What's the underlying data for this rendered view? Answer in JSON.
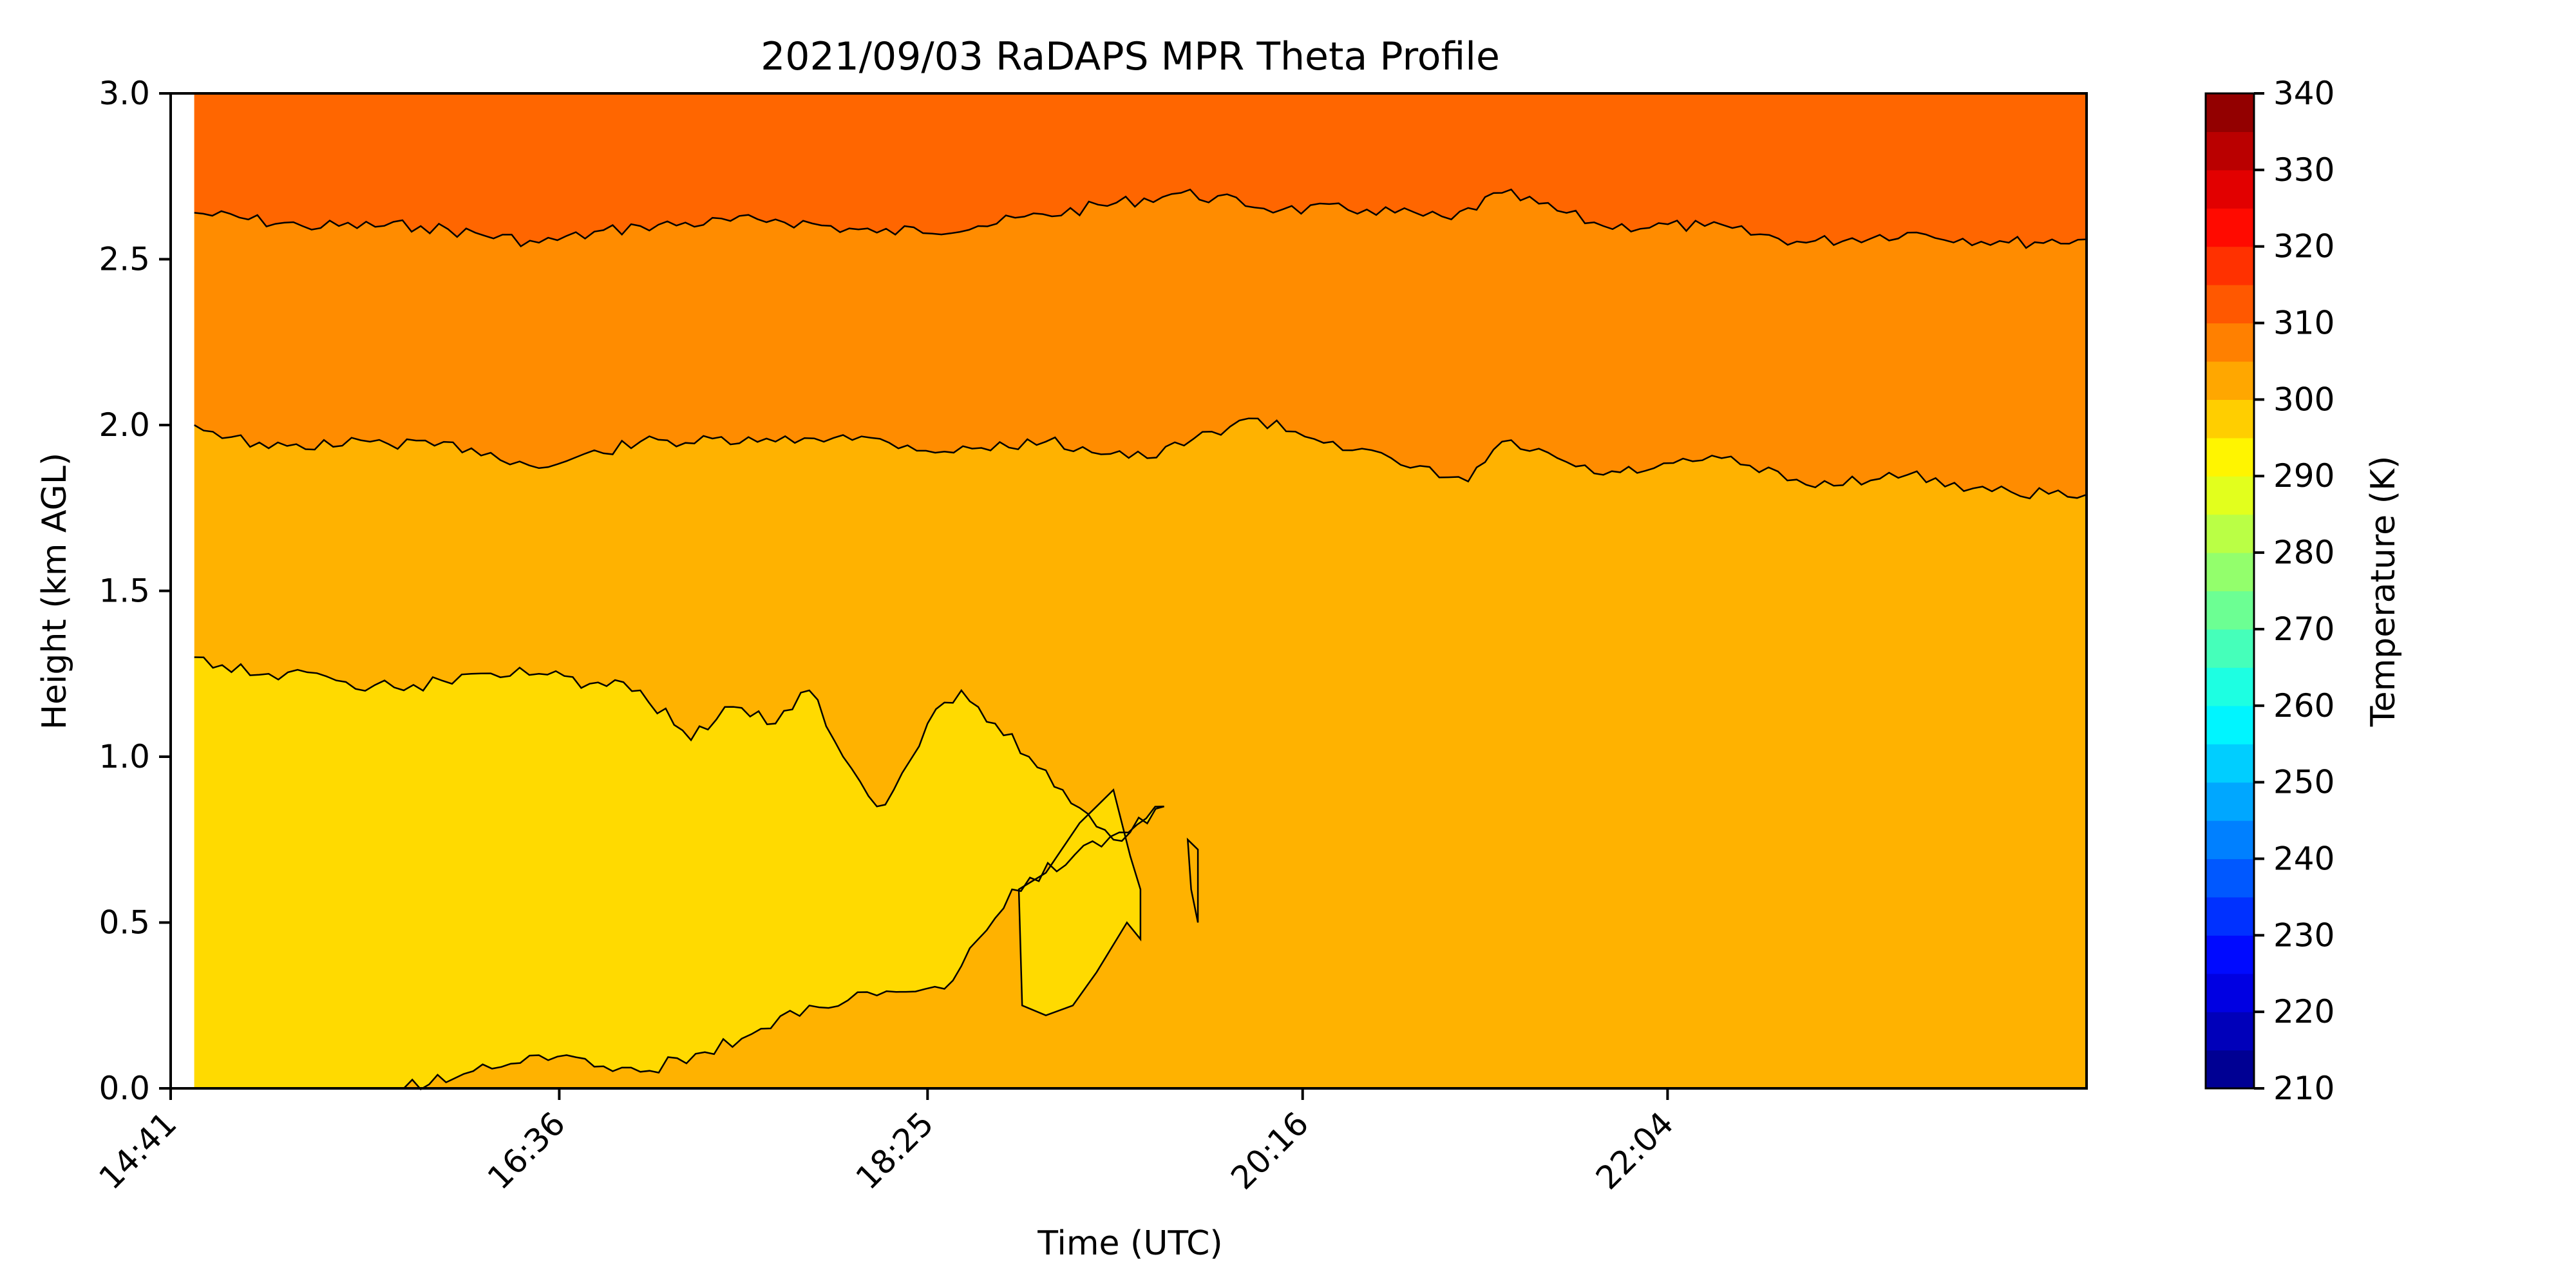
{
  "chart_data": {
    "type": "heatmap",
    "title": "2021/09/03 RaDAPS MPR Theta Profile",
    "xlabel": "Time (UTC)",
    "ylabel": "Height (km AGL)",
    "colorbar_label": "Temperature (K)",
    "xlim": [
      "14:41",
      "00:08"
    ],
    "xticks": [
      "14:41",
      "16:36",
      "18:25",
      "20:16",
      "22:04"
    ],
    "ylim": [
      0.0,
      3.0
    ],
    "yticks": [
      "0.0",
      "0.5",
      "1.0",
      "1.5",
      "2.0",
      "2.5",
      "3.0"
    ],
    "colorbar_range": [
      210,
      340
    ],
    "colorbar_ticks": [
      "210",
      "220",
      "230",
      "240",
      "250",
      "260",
      "270",
      "280",
      "290",
      "300",
      "310",
      "320",
      "330",
      "340"
    ],
    "data_start_time": "14:48",
    "filled_regions": [
      {
        "range_K": [
          300,
          305
        ],
        "color": "#FFB200",
        "extent": "background below contour 2.0 km"
      },
      {
        "range_K": [
          305,
          310
        ],
        "color": "#FF8C00",
        "extent": "between contour 2.0 km and 2.6 km"
      },
      {
        "range_K": [
          310,
          315
        ],
        "color": "#FF6600",
        "extent": "above contour 2.6 km"
      },
      {
        "range_K": [
          295,
          300
        ],
        "color": "#FFDA00",
        "extent": "surface layer 14:48–19:10, up to about 1.3 km"
      }
    ],
    "contours": [
      {
        "level_K": 310,
        "height_km": [
          2.64,
          2.6,
          2.6,
          2.55,
          2.6,
          2.62,
          2.58,
          2.6,
          2.7,
          2.65,
          2.65,
          2.62,
          2.7,
          2.6,
          2.6,
          2.55,
          2.58,
          2.55,
          2.56
        ],
        "times": [
          "14:48",
          "15:20",
          "15:55",
          "16:30",
          "17:00",
          "17:40",
          "18:10",
          "18:40",
          "19:40",
          "20:10",
          "20:35",
          "21:00",
          "21:15",
          "21:45",
          "22:15",
          "22:45",
          "23:15",
          "23:45",
          "00:08"
        ]
      },
      {
        "level_K": 305,
        "height_km": [
          2.0,
          1.93,
          1.95,
          1.93,
          1.87,
          1.95,
          1.95,
          1.97,
          1.92,
          1.95,
          1.9,
          2.02,
          1.95,
          1.88,
          1.83,
          1.95,
          1.85,
          1.87,
          1.9,
          1.82,
          1.85,
          1.8,
          1.79
        ],
        "times": [
          "14:48",
          "15:10",
          "15:40",
          "16:10",
          "16:30",
          "17:00",
          "17:40",
          "18:00",
          "18:30",
          "19:00",
          "19:30",
          "20:00",
          "20:25",
          "20:45",
          "21:05",
          "21:15",
          "21:45",
          "22:00",
          "22:20",
          "22:45",
          "23:15",
          "23:40",
          "00:08"
        ]
      },
      {
        "level_K": 300,
        "height_km": [
          1.3,
          1.25,
          1.23,
          1.2,
          1.25,
          1.25,
          1.22,
          1.2,
          1.05,
          1.15,
          1.1,
          1.2,
          1.0,
          0.85,
          0.9,
          1.1,
          1.2,
          1.1,
          1.0,
          0.9,
          0.75,
          0.85,
          0.6,
          0.45,
          0.3,
          0.28,
          0.25,
          0.15,
          0.05,
          0.1,
          0.03,
          0.0
        ],
        "times": [
          "14:48",
          "15:10",
          "15:30",
          "15:50",
          "16:10",
          "16:30",
          "16:45",
          "17:00",
          "17:15",
          "17:25",
          "17:40",
          "17:50",
          "18:00",
          "18:10",
          "18:15",
          "18:25",
          "18:35",
          "18:45",
          "18:55",
          "19:05",
          "19:20",
          "19:35",
          "18:50",
          "18:40",
          "18:30",
          "18:10",
          "17:50",
          "17:30",
          "17:00",
          "16:30",
          "16:05",
          "15:50"
        ]
      }
    ]
  },
  "colors": {
    "colormap": "jet",
    "warm_fill": "#FFB200",
    "mid_fill": "#FF8C00",
    "top_fill": "#FF6600",
    "surface_fill": "#FFDA00"
  }
}
